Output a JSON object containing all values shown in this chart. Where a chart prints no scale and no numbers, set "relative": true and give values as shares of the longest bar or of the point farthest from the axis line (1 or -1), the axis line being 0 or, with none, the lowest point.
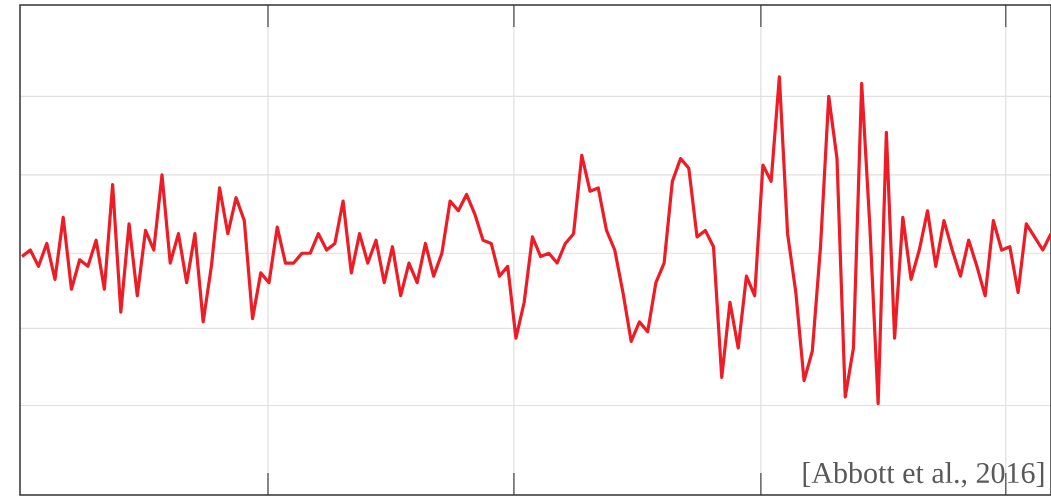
{
  "chart_data": {
    "type": "line",
    "relative": true,
    "grid": true,
    "marker": "none",
    "line_style": "solid",
    "categories": [
      null,
      null,
      null,
      null,
      null,
      null,
      null,
      null,
      null,
      null,
      null,
      null,
      null,
      null,
      null,
      null,
      null,
      null,
      null,
      null,
      null,
      null,
      null,
      null,
      null,
      null,
      null,
      null,
      null,
      null,
      null,
      null,
      null,
      null,
      null,
      null,
      null,
      null,
      null,
      null,
      null,
      null,
      null,
      null,
      null,
      null,
      null,
      null,
      null,
      null,
      null,
      null,
      null,
      null,
      null,
      null,
      null,
      null,
      null,
      null,
      null,
      null,
      null,
      null,
      null,
      null,
      null,
      null,
      null,
      null,
      null,
      null,
      null,
      null,
      null,
      null,
      null,
      null,
      null,
      null,
      null,
      null,
      null,
      null,
      null,
      null,
      null,
      null,
      null,
      null,
      null,
      null,
      null,
      null,
      null,
      null,
      null,
      null,
      null,
      null,
      null,
      null,
      null,
      null,
      null,
      null,
      null,
      null,
      null,
      null,
      null,
      null,
      null,
      null,
      null,
      null,
      null,
      null,
      null,
      null,
      null,
      null,
      null,
      null,
      null,
      null
    ],
    "series": [
      {
        "color": "#ee1c25",
        "values": [
          0.45,
          0.47,
          0.42,
          0.49,
          0.38,
          0.57,
          0.35,
          0.44,
          0.42,
          0.5,
          0.35,
          0.67,
          0.28,
          0.55,
          0.33,
          0.53,
          0.47,
          0.7,
          0.43,
          0.52,
          0.37,
          0.52,
          0.25,
          0.42,
          0.66,
          0.52,
          0.63,
          0.56,
          0.26,
          0.4,
          0.37,
          0.54,
          0.43,
          0.43,
          0.46,
          0.46,
          0.52,
          0.47,
          0.49,
          0.62,
          0.4,
          0.52,
          0.43,
          0.5,
          0.37,
          0.48,
          0.33,
          0.43,
          0.37,
          0.49,
          0.39,
          0.46,
          0.62,
          0.59,
          0.64,
          0.58,
          0.5,
          0.49,
          0.39,
          0.42,
          0.2,
          0.31,
          0.51,
          0.45,
          0.46,
          0.43,
          0.49,
          0.52,
          0.76,
          0.65,
          0.66,
          0.53,
          0.47,
          0.34,
          0.19,
          0.25,
          0.22,
          0.37,
          0.43,
          0.68,
          0.75,
          0.72,
          0.51,
          0.53,
          0.48,
          0.08,
          0.31,
          0.17,
          0.39,
          0.33,
          0.73,
          0.68,
          1.0,
          0.52,
          0.34,
          0.07,
          0.16,
          0.48,
          0.94,
          0.75,
          0.02,
          0.17,
          0.98,
          0.54,
          0,
          0.83,
          0.2,
          0.57,
          0.38,
          0.47,
          0.59,
          0.42,
          0.56,
          0.47,
          0.39,
          0.5,
          0.42,
          0.33,
          0.56,
          0.47,
          0.48,
          0.34,
          0.55,
          0.51,
          0.47,
          0.52
        ]
      }
    ],
    "annotations": [
      "[Abbott et al., 2016]"
    ]
  }
}
